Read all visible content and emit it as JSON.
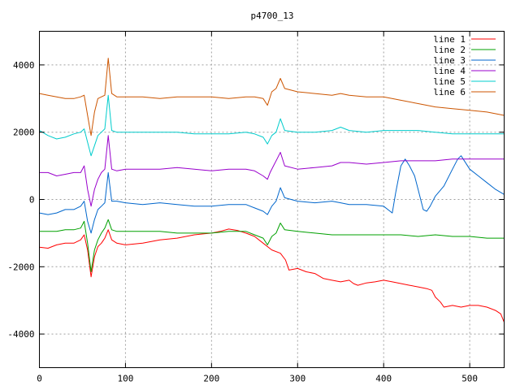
{
  "chart_data": {
    "type": "line",
    "title": "p4700_13",
    "xlabel": "",
    "ylabel": "",
    "xlim": [
      0,
      540
    ],
    "ylim": [
      -5000,
      5000
    ],
    "x_ticks": [
      0,
      100,
      200,
      300,
      400,
      500
    ],
    "y_ticks": [
      -4000,
      -2000,
      0,
      2000,
      4000
    ],
    "grid": true,
    "legend_position": "top-right",
    "series": [
      {
        "name": "line 1",
        "color": "#ff0000",
        "points": [
          [
            0,
            -1420
          ],
          [
            10,
            -1450
          ],
          [
            20,
            -1350
          ],
          [
            30,
            -1300
          ],
          [
            40,
            -1300
          ],
          [
            48,
            -1200
          ],
          [
            52,
            -1050
          ],
          [
            56,
            -1500
          ],
          [
            60,
            -2300
          ],
          [
            64,
            -1700
          ],
          [
            68,
            -1400
          ],
          [
            72,
            -1300
          ],
          [
            76,
            -1150
          ],
          [
            80,
            -900
          ],
          [
            84,
            -1200
          ],
          [
            90,
            -1300
          ],
          [
            100,
            -1350
          ],
          [
            120,
            -1300
          ],
          [
            140,
            -1200
          ],
          [
            160,
            -1150
          ],
          [
            180,
            -1050
          ],
          [
            200,
            -1000
          ],
          [
            210,
            -950
          ],
          [
            220,
            -880
          ],
          [
            230,
            -920
          ],
          [
            240,
            -1000
          ],
          [
            250,
            -1100
          ],
          [
            260,
            -1300
          ],
          [
            270,
            -1500
          ],
          [
            280,
            -1600
          ],
          [
            286,
            -1800
          ],
          [
            290,
            -2100
          ],
          [
            300,
            -2050
          ],
          [
            310,
            -2150
          ],
          [
            320,
            -2200
          ],
          [
            330,
            -2350
          ],
          [
            340,
            -2400
          ],
          [
            350,
            -2450
          ],
          [
            360,
            -2400
          ],
          [
            365,
            -2500
          ],
          [
            370,
            -2550
          ],
          [
            380,
            -2480
          ],
          [
            390,
            -2450
          ],
          [
            400,
            -2400
          ],
          [
            410,
            -2450
          ],
          [
            420,
            -2500
          ],
          [
            430,
            -2550
          ],
          [
            440,
            -2600
          ],
          [
            450,
            -2650
          ],
          [
            456,
            -2700
          ],
          [
            460,
            -2900
          ],
          [
            466,
            -3050
          ],
          [
            470,
            -3200
          ],
          [
            480,
            -3150
          ],
          [
            490,
            -3200
          ],
          [
            500,
            -3150
          ],
          [
            510,
            -3150
          ],
          [
            520,
            -3200
          ],
          [
            530,
            -3300
          ],
          [
            536,
            -3400
          ],
          [
            540,
            -3650
          ]
        ]
      },
      {
        "name": "line 2",
        "color": "#00a000",
        "points": [
          [
            0,
            -950
          ],
          [
            10,
            -950
          ],
          [
            20,
            -950
          ],
          [
            30,
            -900
          ],
          [
            40,
            -900
          ],
          [
            48,
            -850
          ],
          [
            52,
            -650
          ],
          [
            56,
            -1300
          ],
          [
            60,
            -2150
          ],
          [
            64,
            -1500
          ],
          [
            68,
            -1200
          ],
          [
            72,
            -1000
          ],
          [
            76,
            -850
          ],
          [
            80,
            -600
          ],
          [
            84,
            -900
          ],
          [
            90,
            -950
          ],
          [
            100,
            -950
          ],
          [
            120,
            -950
          ],
          [
            140,
            -950
          ],
          [
            160,
            -1000
          ],
          [
            180,
            -1000
          ],
          [
            200,
            -1000
          ],
          [
            220,
            -950
          ],
          [
            240,
            -950
          ],
          [
            250,
            -1050
          ],
          [
            260,
            -1150
          ],
          [
            265,
            -1350
          ],
          [
            270,
            -1100
          ],
          [
            275,
            -1000
          ],
          [
            280,
            -700
          ],
          [
            285,
            -900
          ],
          [
            300,
            -950
          ],
          [
            320,
            -1000
          ],
          [
            340,
            -1050
          ],
          [
            350,
            -1050
          ],
          [
            360,
            -1050
          ],
          [
            380,
            -1050
          ],
          [
            400,
            -1050
          ],
          [
            420,
            -1050
          ],
          [
            440,
            -1100
          ],
          [
            460,
            -1050
          ],
          [
            480,
            -1100
          ],
          [
            500,
            -1100
          ],
          [
            520,
            -1150
          ],
          [
            540,
            -1150
          ]
        ]
      },
      {
        "name": "line 3",
        "color": "#0066cc",
        "points": [
          [
            0,
            -400
          ],
          [
            10,
            -450
          ],
          [
            20,
            -400
          ],
          [
            30,
            -300
          ],
          [
            40,
            -300
          ],
          [
            48,
            -200
          ],
          [
            52,
            -50
          ],
          [
            56,
            -650
          ],
          [
            60,
            -1000
          ],
          [
            64,
            -600
          ],
          [
            68,
            -300
          ],
          [
            72,
            -200
          ],
          [
            76,
            -100
          ],
          [
            80,
            800
          ],
          [
            84,
            -50
          ],
          [
            90,
            -50
          ],
          [
            100,
            -100
          ],
          [
            120,
            -150
          ],
          [
            140,
            -100
          ],
          [
            160,
            -150
          ],
          [
            180,
            -200
          ],
          [
            200,
            -200
          ],
          [
            220,
            -150
          ],
          [
            240,
            -150
          ],
          [
            250,
            -250
          ],
          [
            260,
            -350
          ],
          [
            265,
            -450
          ],
          [
            270,
            -200
          ],
          [
            275,
            -50
          ],
          [
            280,
            350
          ],
          [
            285,
            50
          ],
          [
            300,
            -50
          ],
          [
            320,
            -100
          ],
          [
            340,
            -50
          ],
          [
            350,
            -100
          ],
          [
            360,
            -150
          ],
          [
            380,
            -150
          ],
          [
            400,
            -200
          ],
          [
            410,
            -400
          ],
          [
            414,
            200
          ],
          [
            420,
            1000
          ],
          [
            425,
            1200
          ],
          [
            430,
            1000
          ],
          [
            436,
            700
          ],
          [
            440,
            300
          ],
          [
            446,
            -300
          ],
          [
            450,
            -350
          ],
          [
            454,
            -200
          ],
          [
            460,
            100
          ],
          [
            470,
            400
          ],
          [
            480,
            900
          ],
          [
            486,
            1200
          ],
          [
            490,
            1300
          ],
          [
            500,
            900
          ],
          [
            510,
            700
          ],
          [
            520,
            500
          ],
          [
            530,
            300
          ],
          [
            540,
            150
          ]
        ]
      },
      {
        "name": "line 4",
        "color": "#9900cc",
        "points": [
          [
            0,
            800
          ],
          [
            10,
            800
          ],
          [
            20,
            700
          ],
          [
            30,
            750
          ],
          [
            40,
            800
          ],
          [
            48,
            800
          ],
          [
            52,
            1000
          ],
          [
            56,
            300
          ],
          [
            60,
            -200
          ],
          [
            64,
            300
          ],
          [
            68,
            600
          ],
          [
            72,
            800
          ],
          [
            76,
            900
          ],
          [
            80,
            1900
          ],
          [
            84,
            900
          ],
          [
            90,
            850
          ],
          [
            100,
            900
          ],
          [
            120,
            900
          ],
          [
            140,
            900
          ],
          [
            160,
            950
          ],
          [
            180,
            900
          ],
          [
            200,
            850
          ],
          [
            220,
            900
          ],
          [
            240,
            900
          ],
          [
            250,
            850
          ],
          [
            260,
            700
          ],
          [
            265,
            600
          ],
          [
            268,
            800
          ],
          [
            272,
            1000
          ],
          [
            276,
            1200
          ],
          [
            280,
            1400
          ],
          [
            285,
            1000
          ],
          [
            300,
            900
          ],
          [
            320,
            950
          ],
          [
            340,
            1000
          ],
          [
            350,
            1100
          ],
          [
            360,
            1100
          ],
          [
            380,
            1050
          ],
          [
            400,
            1100
          ],
          [
            420,
            1150
          ],
          [
            440,
            1150
          ],
          [
            460,
            1150
          ],
          [
            480,
            1200
          ],
          [
            500,
            1200
          ],
          [
            520,
            1200
          ],
          [
            540,
            1200
          ]
        ]
      },
      {
        "name": "line 5",
        "color": "#00cccc",
        "points": [
          [
            0,
            2050
          ],
          [
            10,
            1900
          ],
          [
            20,
            1800
          ],
          [
            30,
            1850
          ],
          [
            40,
            1950
          ],
          [
            48,
            2000
          ],
          [
            52,
            2100
          ],
          [
            56,
            1700
          ],
          [
            60,
            1300
          ],
          [
            64,
            1600
          ],
          [
            68,
            1900
          ],
          [
            72,
            2000
          ],
          [
            76,
            2100
          ],
          [
            80,
            3100
          ],
          [
            84,
            2050
          ],
          [
            90,
            2000
          ],
          [
            100,
            2000
          ],
          [
            120,
            2000
          ],
          [
            140,
            2000
          ],
          [
            160,
            2000
          ],
          [
            180,
            1950
          ],
          [
            200,
            1950
          ],
          [
            220,
            1950
          ],
          [
            240,
            2000
          ],
          [
            250,
            1950
          ],
          [
            260,
            1850
          ],
          [
            265,
            1650
          ],
          [
            270,
            1900
          ],
          [
            275,
            2000
          ],
          [
            280,
            2400
          ],
          [
            285,
            2050
          ],
          [
            300,
            2000
          ],
          [
            320,
            2000
          ],
          [
            340,
            2050
          ],
          [
            350,
            2150
          ],
          [
            360,
            2050
          ],
          [
            380,
            2000
          ],
          [
            400,
            2050
          ],
          [
            420,
            2050
          ],
          [
            440,
            2050
          ],
          [
            460,
            2000
          ],
          [
            480,
            1950
          ],
          [
            500,
            1950
          ],
          [
            520,
            1950
          ],
          [
            540,
            1950
          ]
        ]
      },
      {
        "name": "line 6",
        "color": "#cc5500",
        "points": [
          [
            0,
            3150
          ],
          [
            10,
            3100
          ],
          [
            20,
            3050
          ],
          [
            30,
            3000
          ],
          [
            40,
            3000
          ],
          [
            48,
            3050
          ],
          [
            52,
            3100
          ],
          [
            56,
            2500
          ],
          [
            60,
            1900
          ],
          [
            64,
            2600
          ],
          [
            68,
            3000
          ],
          [
            72,
            3050
          ],
          [
            76,
            3100
          ],
          [
            80,
            4200
          ],
          [
            84,
            3150
          ],
          [
            90,
            3050
          ],
          [
            100,
            3050
          ],
          [
            120,
            3050
          ],
          [
            140,
            3000
          ],
          [
            160,
            3050
          ],
          [
            180,
            3050
          ],
          [
            200,
            3050
          ],
          [
            220,
            3000
          ],
          [
            240,
            3050
          ],
          [
            250,
            3050
          ],
          [
            260,
            3000
          ],
          [
            265,
            2800
          ],
          [
            270,
            3200
          ],
          [
            275,
            3300
          ],
          [
            280,
            3600
          ],
          [
            285,
            3300
          ],
          [
            300,
            3200
          ],
          [
            320,
            3150
          ],
          [
            340,
            3100
          ],
          [
            350,
            3150
          ],
          [
            360,
            3100
          ],
          [
            380,
            3050
          ],
          [
            400,
            3050
          ],
          [
            420,
            2950
          ],
          [
            440,
            2850
          ],
          [
            460,
            2750
          ],
          [
            480,
            2700
          ],
          [
            500,
            2650
          ],
          [
            520,
            2600
          ],
          [
            540,
            2500
          ]
        ]
      }
    ]
  }
}
